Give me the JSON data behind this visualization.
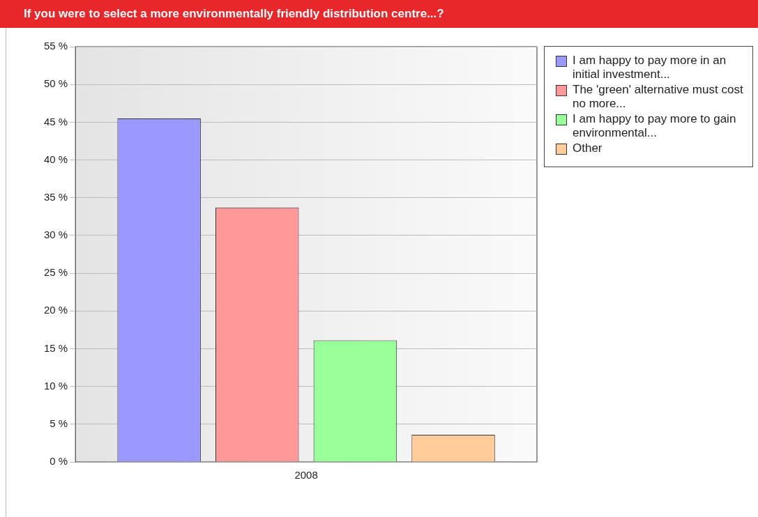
{
  "chart_data": {
    "type": "bar",
    "title": "If you were to select a more environmentally friendly distribution centre...?",
    "categories": [
      "2008"
    ],
    "series": [
      {
        "name": "I am happy to pay more in an initial investment...",
        "color": "#9999ff",
        "values": [
          45.5
        ]
      },
      {
        "name": "The 'green' alternative must cost no more...",
        "color": "#ff9999",
        "values": [
          33.7
        ]
      },
      {
        "name": "I am happy to pay more to gain environmental...",
        "color": "#99ff99",
        "values": [
          16.1
        ]
      },
      {
        "name": "Other",
        "color": "#ffcc99",
        "values": [
          3.6
        ]
      }
    ],
    "ylim": [
      0,
      55
    ],
    "yticks": [
      {
        "value": 0,
        "label": "0 %"
      },
      {
        "value": 5,
        "label": "5 %"
      },
      {
        "value": 10,
        "label": "10 %"
      },
      {
        "value": 15,
        "label": "15 %"
      },
      {
        "value": 20,
        "label": "20 %"
      },
      {
        "value": 25,
        "label": "25 %"
      },
      {
        "value": 30,
        "label": "30 %"
      },
      {
        "value": 35,
        "label": "35 %"
      },
      {
        "value": 40,
        "label": "40 %"
      },
      {
        "value": 45,
        "label": "45 %"
      },
      {
        "value": 50,
        "label": "50 %"
      },
      {
        "value": 55,
        "label": "55 %"
      }
    ],
    "grid": "y",
    "legend": "top right"
  }
}
